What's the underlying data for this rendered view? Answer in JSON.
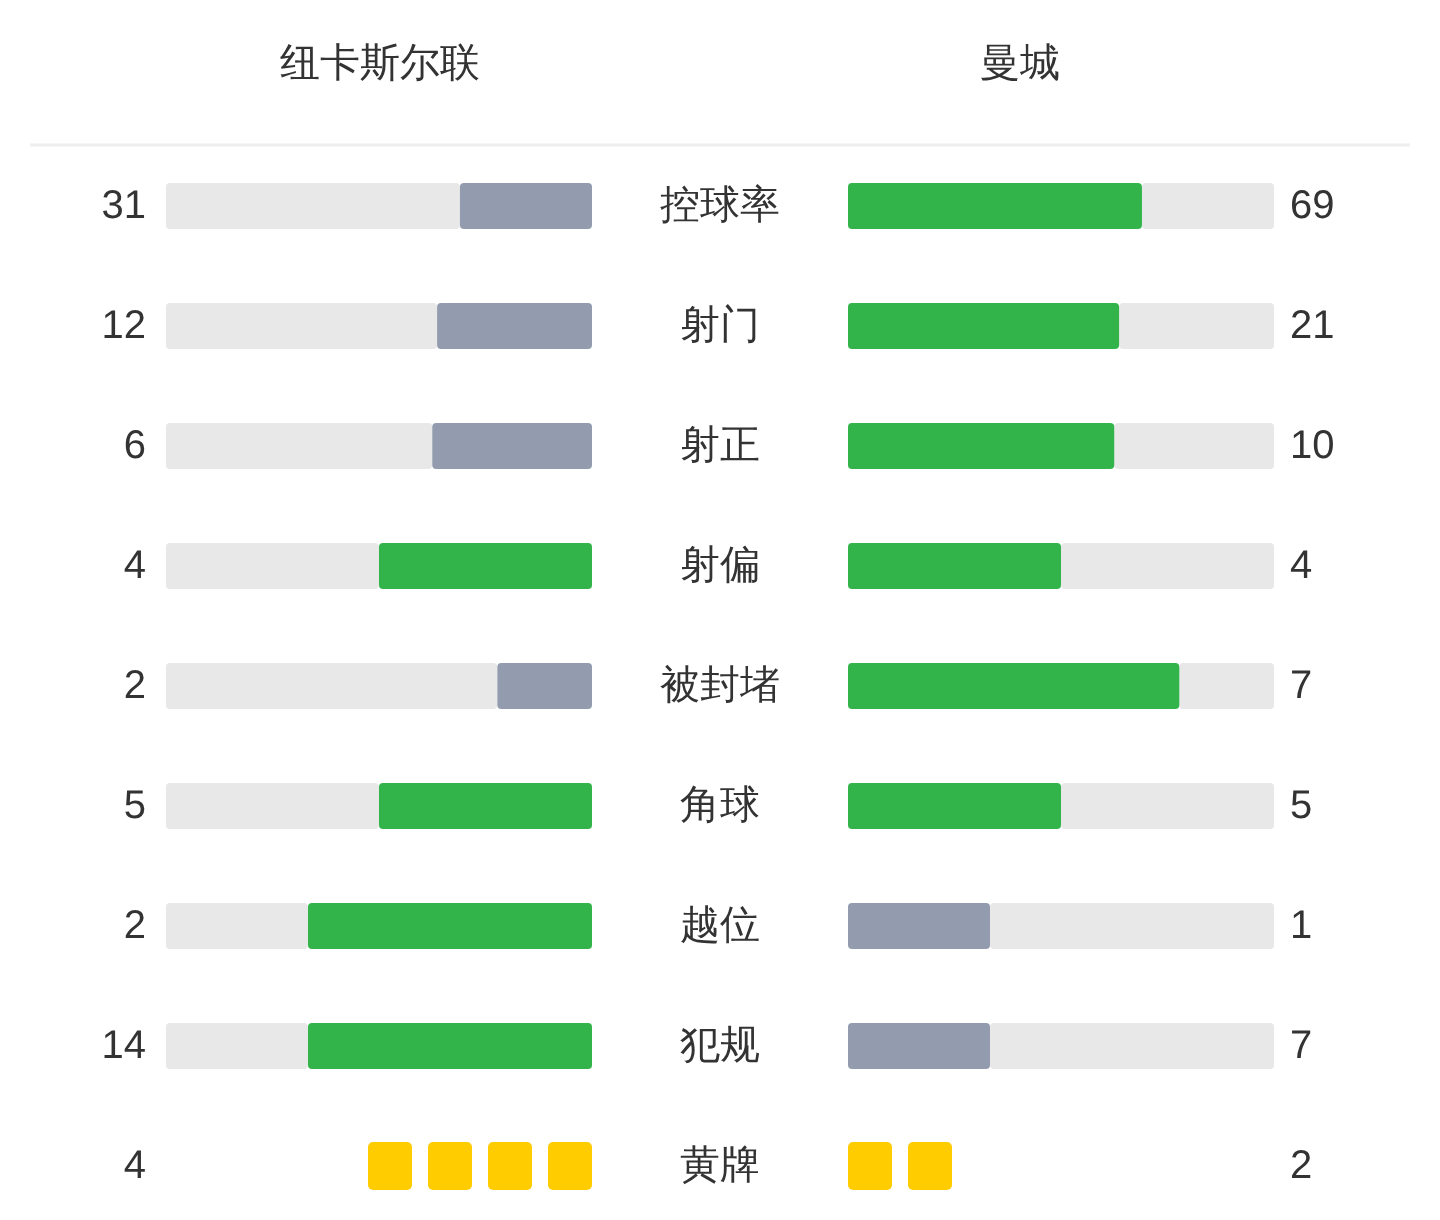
{
  "chart_data": [
    {
      "type": "other",
      "categories": [
        "控球率",
        "射门",
        "射正",
        "射偏",
        "被封堵",
        "角球",
        "越位",
        "犯规"
      ],
      "series": [
        {
          "name": "纽卡斯尔联",
          "values": [
            31,
            12,
            6,
            4,
            2,
            5,
            2,
            14
          ],
          "colors": [
            "#939cae",
            "#939cae",
            "#939cae",
            "#32b44a",
            "#939cae",
            "#32b44a",
            "#32b44a",
            "#32b44a"
          ]
        },
        {
          "name": "曼城",
          "values": [
            69,
            21,
            10,
            4,
            7,
            5,
            1,
            7
          ],
          "colors": [
            "#32b44a",
            "#32b44a",
            "#32b44a",
            "#32b44a",
            "#32b44a",
            "#32b44a",
            "#939cae",
            "#939cae"
          ]
        }
      ],
      "data_labels": true
    },
    {
      "type": "other",
      "categories": [
        "黄牌"
      ],
      "series": [
        {
          "values": [
            4
          ],
          "color": "#ffcc00"
        },
        {
          "values": [
            2
          ],
          "color": "#ffcc00"
        }
      ],
      "data_labels": true
    }
  ]
}
